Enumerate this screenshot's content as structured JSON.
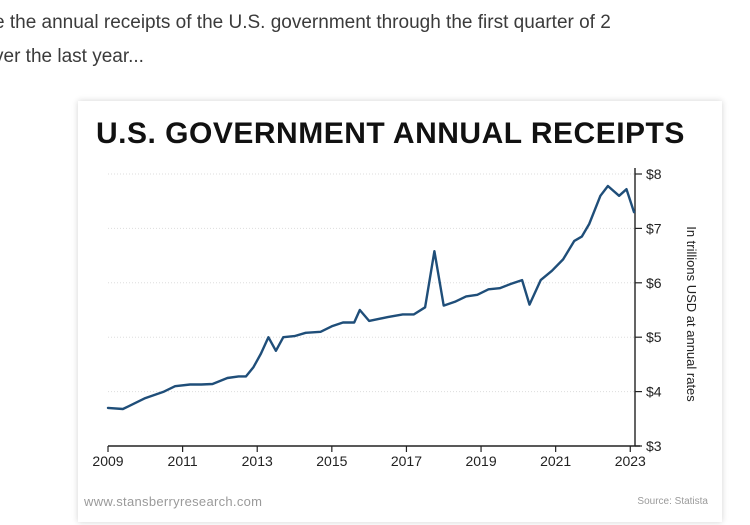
{
  "intro": {
    "line1": "e the annual receipts of the U.S. government through the first quarter of 2",
    "line2": "ver the last year..."
  },
  "footer": {
    "website": "www.stansberryresearch.com",
    "source": "Source: Statista"
  },
  "colors": {
    "line": "#1f4e79",
    "axis": "#222222",
    "grid": "#dddddd"
  },
  "chart_data": {
    "type": "line",
    "title": "U.S. GOVERNMENT ANNUAL RECEIPTS",
    "ylabel": "In trillions USD at annual rates",
    "xlim": [
      2009,
      2023.1
    ],
    "ylim": [
      3,
      8
    ],
    "x_ticks": [
      2009,
      2011,
      2013,
      2015,
      2017,
      2019,
      2021,
      2023
    ],
    "y_ticks": [
      {
        "value": 3,
        "label": "$3"
      },
      {
        "value": 4,
        "label": "$4"
      },
      {
        "value": 5,
        "label": "$5"
      },
      {
        "value": 6,
        "label": "$6"
      },
      {
        "value": 7,
        "label": "$7"
      },
      {
        "value": 8,
        "label": "$8"
      }
    ],
    "grid": true,
    "y_axis_position": "right",
    "series": [
      {
        "x": [
          2009.0,
          2009.4,
          2009.7,
          2010.0,
          2010.5,
          2010.8,
          2011.2,
          2011.5,
          2011.8,
          2012.2,
          2012.5,
          2012.7,
          2012.9,
          2013.1,
          2013.3,
          2013.5,
          2013.7,
          2014.0,
          2014.3,
          2014.7,
          2015.0,
          2015.3,
          2015.6,
          2015.75,
          2016.0,
          2016.5,
          2016.9,
          2017.2,
          2017.5,
          2017.75,
          2018.0,
          2018.3,
          2018.6,
          2018.9,
          2019.2,
          2019.5,
          2019.8,
          2020.1,
          2020.3,
          2020.6,
          2020.9,
          2021.2,
          2021.5,
          2021.7,
          2021.9,
          2022.2,
          2022.4,
          2022.7,
          2022.9,
          2023.1
        ],
        "y": [
          3.7,
          3.68,
          3.78,
          3.88,
          4.0,
          4.1,
          4.13,
          4.13,
          4.14,
          4.25,
          4.28,
          4.28,
          4.45,
          4.7,
          5.0,
          4.75,
          5.0,
          5.02,
          5.08,
          5.1,
          5.2,
          5.27,
          5.27,
          5.5,
          5.3,
          5.37,
          5.42,
          5.42,
          5.55,
          6.58,
          5.58,
          5.65,
          5.75,
          5.78,
          5.88,
          5.9,
          5.98,
          6.05,
          5.6,
          6.05,
          6.22,
          6.43,
          6.77,
          6.85,
          7.08,
          7.6,
          7.78,
          7.6,
          7.72,
          7.3
        ]
      }
    ]
  }
}
